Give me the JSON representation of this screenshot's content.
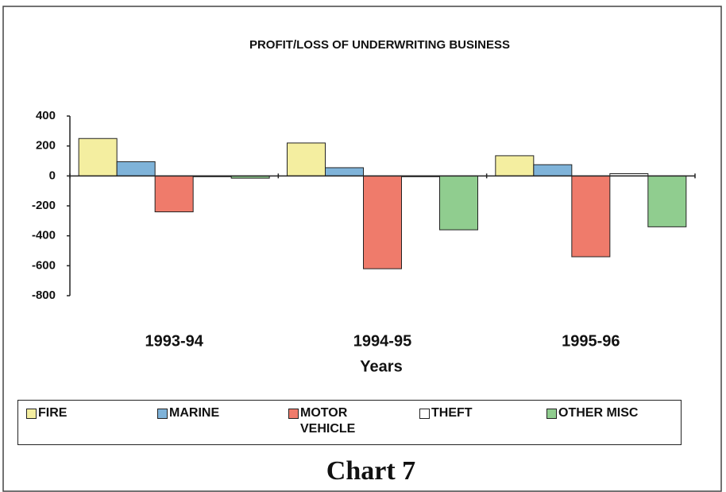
{
  "chart_data": {
    "type": "bar",
    "title": "PROFIT/LOSS OF UNDERWRITING BUSINESS",
    "x_label": "Years",
    "caption": "Chart 7",
    "categories": [
      "1993-94",
      "1994-95",
      "1995-96"
    ],
    "series": [
      {
        "name": "FIRE",
        "color": "#f4eea0",
        "values": [
          250,
          220,
          135
        ]
      },
      {
        "name": "MARINE",
        "color": "#7fb3d9",
        "values": [
          95,
          55,
          75
        ]
      },
      {
        "name": "MOTOR VEHICLE",
        "color": "#ef7b6b",
        "values": [
          -240,
          -620,
          -540
        ]
      },
      {
        "name": "THEFT",
        "color": "#ffffff",
        "values": [
          0,
          0,
          15
        ]
      },
      {
        "name": "OTHER MISC",
        "color": "#90cd8f",
        "values": [
          -15,
          -360,
          -340
        ]
      }
    ],
    "ylim": [
      -800,
      400
    ],
    "yticks": [
      400,
      200,
      0,
      -200,
      -400,
      -600,
      -800
    ],
    "legend": "bottom"
  }
}
